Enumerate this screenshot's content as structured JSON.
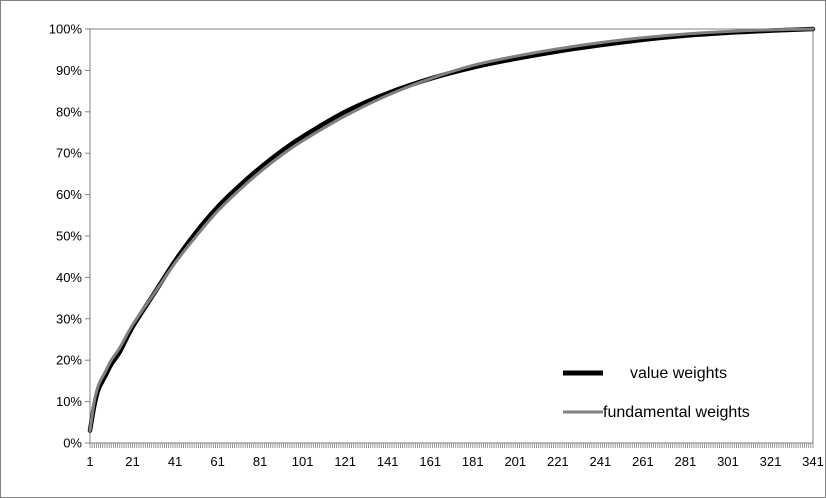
{
  "chart_data": {
    "type": "line",
    "title": "",
    "xlabel": "",
    "ylabel": "",
    "xlim": [
      1,
      341
    ],
    "ylim": [
      0,
      100
    ],
    "x_tick_labels": [
      "1",
      "21",
      "41",
      "61",
      "81",
      "101",
      "121",
      "141",
      "161",
      "181",
      "201",
      "221",
      "241",
      "261",
      "281",
      "301",
      "321",
      "341"
    ],
    "y_tick_labels": [
      "0%",
      "10%",
      "20%",
      "30%",
      "40%",
      "50%",
      "60%",
      "70%",
      "80%",
      "90%",
      "100%"
    ],
    "grid": false,
    "legend_position": "bottom-right",
    "x": [
      1,
      3,
      5,
      8,
      11,
      15,
      21,
      31,
      41,
      51,
      61,
      71,
      81,
      91,
      101,
      121,
      141,
      161,
      181,
      201,
      221,
      241,
      261,
      281,
      301,
      321,
      341
    ],
    "series": [
      {
        "name": "value weights",
        "color": "#000000",
        "values": [
          3,
          9,
          13,
          16,
          19,
          22,
          28,
          36,
          44,
          51,
          57,
          62,
          66.5,
          70.5,
          74,
          80,
          84.5,
          88,
          90.7,
          92.8,
          94.6,
          96.1,
          97.4,
          98.4,
          99.1,
          99.6,
          100
        ]
      },
      {
        "name": "fundamental weights",
        "color": "#808080",
        "values": [
          3,
          10,
          14,
          17,
          20,
          23,
          28.5,
          36,
          43.5,
          50,
          56,
          61,
          65.5,
          69.5,
          73,
          79,
          84,
          88,
          91.2,
          93.4,
          95.2,
          96.7,
          97.9,
          98.8,
          99.4,
          99.8,
          100
        ]
      }
    ]
  }
}
